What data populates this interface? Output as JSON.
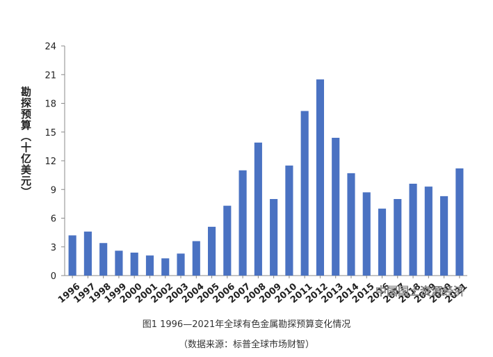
{
  "chart_data": {
    "type": "bar",
    "ylabel": "勘探预算（十亿美元）",
    "ylim": [
      0,
      24
    ],
    "yticks": [
      0,
      3,
      6,
      9,
      12,
      15,
      18,
      21,
      24
    ],
    "categories": [
      "1996",
      "1997",
      "1998",
      "1999",
      "2000",
      "2001",
      "2002",
      "2003",
      "2004",
      "2005",
      "2006",
      "2007",
      "2008",
      "2009",
      "2010",
      "2011",
      "2012",
      "2013",
      "2014",
      "2015",
      "2016",
      "2017",
      "2018",
      "2019",
      "2020",
      "2021"
    ],
    "values": [
      4.2,
      4.6,
      3.4,
      2.6,
      2.4,
      2.1,
      1.8,
      2.3,
      3.6,
      5.1,
      7.3,
      11.0,
      13.9,
      8.0,
      11.5,
      17.2,
      20.5,
      14.4,
      10.7,
      8.7,
      7.0,
      8.0,
      9.6,
      9.3,
      8.3,
      11.2
    ],
    "bar_color": "#4a72c2",
    "grid": false,
    "legend": "none"
  },
  "caption": {
    "title": "图1 1996—2021年全球有色金属勘探预算变化情况",
    "source": "（数据来源：标普全球市场财智）"
  },
  "watermark": "中国国土资源经济"
}
